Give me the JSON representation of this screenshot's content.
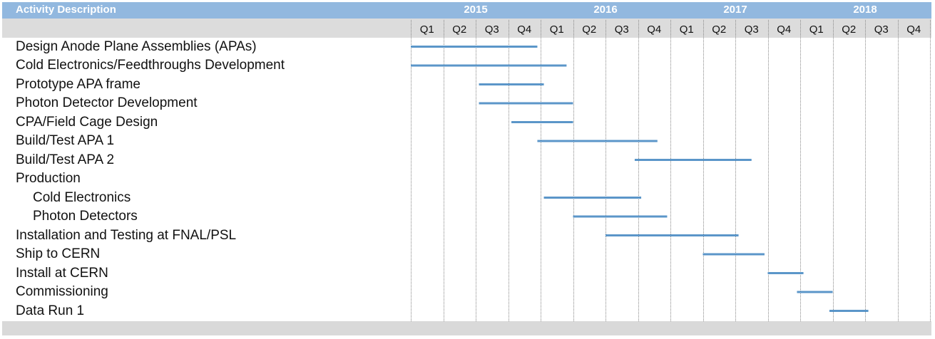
{
  "chart_data": {
    "type": "gantt",
    "header_title": "Activity Description",
    "years": [
      "2015",
      "2016",
      "2017",
      "2018"
    ],
    "quarter_labels": [
      "Q1",
      "Q2",
      "Q3",
      "Q4",
      "Q1",
      "Q2",
      "Q3",
      "Q4",
      "Q1",
      "Q2",
      "Q3",
      "Q4",
      "Q1",
      "Q2",
      "Q3",
      "Q4"
    ],
    "x_unit": "quarter index from start of 2015 Q1",
    "x_range": [
      0,
      16
    ],
    "grid": true,
    "bar_color": "#5b96c9",
    "tasks": [
      {
        "name": "Design Anode Plane Assemblies (APAs)",
        "indent": false,
        "start": 0.0,
        "end": 3.9
      },
      {
        "name": "Cold Electronics/Feedthroughs Development",
        "indent": false,
        "start": 0.0,
        "end": 4.8
      },
      {
        "name": "Prototype APA frame",
        "indent": false,
        "start": 2.1,
        "end": 4.1
      },
      {
        "name": "Photon Detector Development",
        "indent": false,
        "start": 2.1,
        "end": 5.0
      },
      {
        "name": "CPA/Field Cage Design",
        "indent": false,
        "start": 3.1,
        "end": 5.0
      },
      {
        "name": "Build/Test APA 1",
        "indent": false,
        "start": 3.9,
        "end": 7.6
      },
      {
        "name": "Build/Test APA 2",
        "indent": false,
        "start": 6.9,
        "end": 10.5
      },
      {
        "name": "Production",
        "indent": false,
        "start": null,
        "end": null
      },
      {
        "name": "Cold Electronics",
        "indent": true,
        "start": 4.1,
        "end": 7.1
      },
      {
        "name": "Photon Detectors",
        "indent": true,
        "start": 5.0,
        "end": 7.9
      },
      {
        "name": "Installation and Testing at FNAL/PSL",
        "indent": false,
        "start": 6.0,
        "end": 10.1
      },
      {
        "name": "Ship to CERN",
        "indent": false,
        "start": 9.0,
        "end": 10.9
      },
      {
        "name": "Install at CERN",
        "indent": false,
        "start": 11.0,
        "end": 12.1
      },
      {
        "name": "Commissioning",
        "indent": false,
        "start": 11.9,
        "end": 13.0
      },
      {
        "name": "Data Run 1",
        "indent": false,
        "start": 12.9,
        "end": 14.1
      }
    ]
  }
}
